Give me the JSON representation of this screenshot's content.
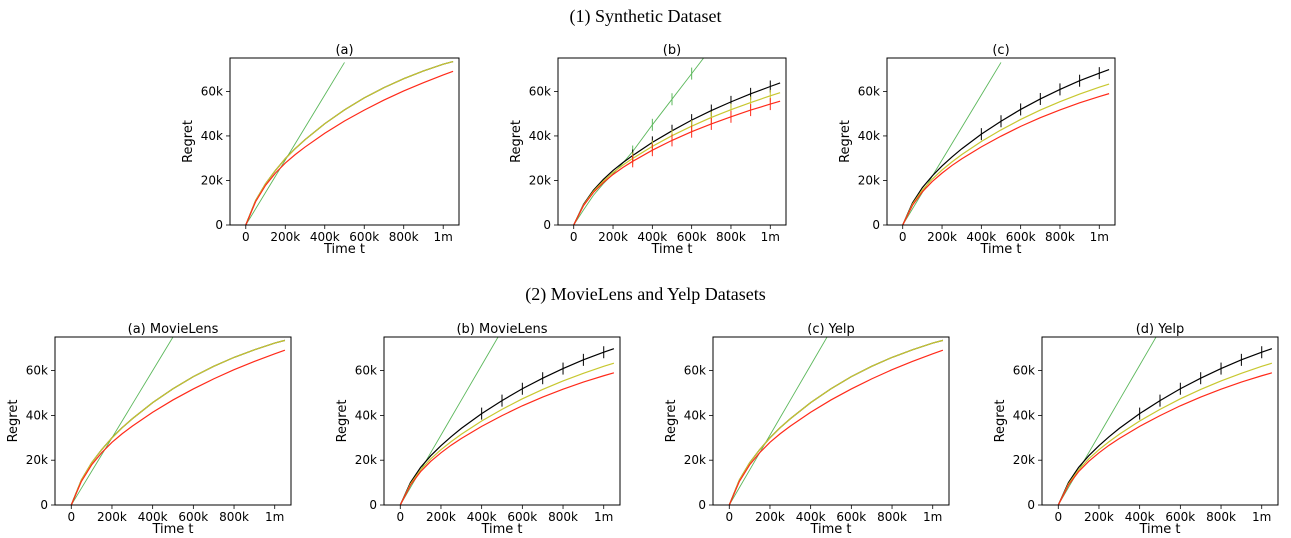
{
  "figure": {
    "row1_title": "(1) Synthetic Dataset",
    "row2_title": "(2) MovieLens and Yelp Datasets"
  },
  "colors": {
    "green": "#5cb85c",
    "black": "#000000",
    "yellow": "#c8c830",
    "red": "#ff2a1a"
  },
  "chart_data": [
    {
      "type": "line",
      "title": "(a)",
      "xlabel": "Time t",
      "ylabel": "Regret",
      "xlim": [
        -80000,
        1080000
      ],
      "ylim": [
        0,
        75000
      ],
      "xticks": [
        0,
        200000,
        400000,
        600000,
        800000,
        1000000
      ],
      "xticklabels": [
        "0",
        "200k",
        "400k",
        "600k",
        "800k",
        "1m"
      ],
      "yticks": [
        0,
        20000,
        40000,
        60000
      ],
      "yticklabels": [
        "0",
        "20k",
        "40k",
        "60k"
      ],
      "x": [
        0,
        50000,
        100000,
        150000,
        200000,
        250000,
        300000,
        400000,
        500000,
        600000,
        700000,
        800000,
        900000,
        1000000,
        1050000
      ],
      "series": [
        {
          "color": "green",
          "values": [
            0,
            7300,
            14600,
            21900,
            29200,
            36500,
            43800,
            58400,
            73000,
            null,
            null,
            null,
            null,
            null,
            null
          ]
        },
        {
          "color": "black",
          "values": [
            0,
            11000,
            18500,
            24500,
            29800,
            34300,
            38300,
            45500,
            51700,
            57100,
            61700,
            65700,
            69200,
            72200,
            73400
          ]
        },
        {
          "color": "yellow",
          "values": [
            0,
            11000,
            18500,
            24500,
            29800,
            34300,
            38300,
            45500,
            51700,
            57100,
            61700,
            65700,
            69200,
            72200,
            73400
          ]
        },
        {
          "color": "red",
          "values": [
            0,
            10500,
            17800,
            23300,
            27800,
            31600,
            35000,
            41200,
            46700,
            51600,
            56100,
            60200,
            63900,
            67400,
            69000
          ]
        }
      ]
    },
    {
      "type": "line",
      "title": "(b)",
      "xlabel": "Time t",
      "ylabel": "Regret",
      "xlim": [
        -80000,
        1080000
      ],
      "ylim": [
        0,
        75000
      ],
      "xticks": [
        0,
        200000,
        400000,
        600000,
        800000,
        1000000
      ],
      "xticklabels": [
        "0",
        "200k",
        "400k",
        "600k",
        "800k",
        "1m"
      ],
      "yticks": [
        0,
        20000,
        40000,
        60000
      ],
      "yticklabels": [
        "0",
        "20k",
        "40k",
        "60k"
      ],
      "x": [
        0,
        50000,
        100000,
        150000,
        200000,
        250000,
        300000,
        400000,
        500000,
        600000,
        700000,
        800000,
        900000,
        1000000,
        1050000
      ],
      "error_bar_x": [
        300000,
        400000,
        500000,
        600000,
        700000,
        800000,
        900000,
        1000000
      ],
      "series": [
        {
          "color": "green",
          "values": [
            0,
            6800,
            13300,
            18500,
            23000,
            27800,
            33000,
            45000,
            56500,
            68000,
            79500,
            null,
            null,
            null,
            null
          ],
          "error_bars": true
        },
        {
          "color": "black",
          "values": [
            0,
            9300,
            15600,
            20400,
            24500,
            28000,
            31200,
            37100,
            42300,
            47100,
            51400,
            55300,
            58900,
            62200,
            63800
          ],
          "error_bars": true
        },
        {
          "color": "yellow",
          "values": [
            0,
            9000,
            15100,
            19700,
            23600,
            26900,
            29900,
            35300,
            40100,
            44400,
            48300,
            51800,
            55000,
            58000,
            59400
          ],
          "error_bars": true
        },
        {
          "color": "red",
          "values": [
            0,
            8700,
            14600,
            19000,
            22700,
            25800,
            28600,
            33600,
            38000,
            41900,
            45400,
            48600,
            51600,
            54300,
            55600
          ],
          "error_bars": true
        }
      ]
    },
    {
      "type": "line",
      "title": "(c)",
      "xlabel": "Time t",
      "ylabel": "Regret",
      "xlim": [
        -80000,
        1080000
      ],
      "ylim": [
        0,
        75000
      ],
      "xticks": [
        0,
        200000,
        400000,
        600000,
        800000,
        1000000
      ],
      "xticklabels": [
        "0",
        "200k",
        "400k",
        "600k",
        "800k",
        "1m"
      ],
      "yticks": [
        0,
        20000,
        40000,
        60000
      ],
      "yticklabels": [
        "0",
        "20k",
        "40k",
        "60k"
      ],
      "x": [
        0,
        50000,
        100000,
        150000,
        200000,
        250000,
        300000,
        400000,
        500000,
        600000,
        700000,
        800000,
        900000,
        1000000,
        1050000
      ],
      "error_bar_x": [
        400000,
        500000,
        600000,
        700000,
        800000,
        900000,
        1000000
      ],
      "series": [
        {
          "color": "green",
          "values": [
            0,
            7300,
            14600,
            21900,
            29200,
            36500,
            43800,
            58400,
            73000,
            null,
            null,
            null,
            null,
            null,
            null
          ]
        },
        {
          "color": "black",
          "values": [
            0,
            10000,
            16800,
            22000,
            26500,
            30500,
            34200,
            40800,
            46600,
            51900,
            56600,
            60900,
            64800,
            68200,
            69800
          ],
          "error_bars": true
        },
        {
          "color": "yellow",
          "values": [
            0,
            9400,
            15700,
            20600,
            24700,
            28300,
            31600,
            37500,
            42700,
            47400,
            51600,
            55400,
            58800,
            61900,
            63300
          ]
        },
        {
          "color": "red",
          "values": [
            0,
            8900,
            14900,
            19500,
            23300,
            26700,
            29700,
            35100,
            39900,
            44300,
            48200,
            51700,
            54900,
            57700,
            59000
          ]
        }
      ]
    },
    {
      "type": "line",
      "title": "(a) MovieLens",
      "xlabel": "Time t",
      "ylabel": "Regret",
      "xlim": [
        -80000,
        1080000
      ],
      "ylim": [
        0,
        75000
      ],
      "xticks": [
        0,
        200000,
        400000,
        600000,
        800000,
        1000000
      ],
      "xticklabels": [
        "0",
        "200k",
        "400k",
        "600k",
        "800k",
        "1m"
      ],
      "yticks": [
        0,
        20000,
        40000,
        60000
      ],
      "yticklabels": [
        "0",
        "20k",
        "40k",
        "60k"
      ],
      "x": [
        0,
        50000,
        100000,
        150000,
        200000,
        250000,
        300000,
        400000,
        500000,
        600000,
        700000,
        800000,
        900000,
        1000000,
        1050000
      ],
      "series": [
        {
          "color": "green",
          "values": [
            0,
            7500,
            15000,
            22500,
            30000,
            37500,
            45000,
            60000,
            75000,
            null,
            null,
            null,
            null,
            null,
            null
          ]
        },
        {
          "color": "black",
          "values": [
            0,
            11200,
            18800,
            24800,
            30000,
            34500,
            38500,
            45700,
            51900,
            57300,
            61900,
            65900,
            69300,
            72300,
            73500
          ]
        },
        {
          "color": "yellow",
          "values": [
            0,
            11200,
            18800,
            24800,
            30000,
            34500,
            38500,
            45700,
            51900,
            57300,
            61900,
            65900,
            69300,
            72300,
            73500
          ]
        },
        {
          "color": "red",
          "values": [
            0,
            10600,
            17900,
            23400,
            28000,
            31800,
            35200,
            41400,
            46900,
            51800,
            56300,
            60400,
            64100,
            67500,
            69100
          ]
        }
      ]
    },
    {
      "type": "line",
      "title": "(b) MovieLens",
      "xlabel": "Time t",
      "ylabel": "Regret",
      "xlim": [
        -80000,
        1080000
      ],
      "ylim": [
        0,
        75000
      ],
      "xticks": [
        0,
        200000,
        400000,
        600000,
        800000,
        1000000
      ],
      "xticklabels": [
        "0",
        "200k",
        "400k",
        "600k",
        "800k",
        "1m"
      ],
      "yticks": [
        0,
        20000,
        40000,
        60000
      ],
      "yticklabels": [
        "0",
        "20k",
        "40k",
        "60k"
      ],
      "x": [
        0,
        50000,
        100000,
        150000,
        200000,
        250000,
        300000,
        400000,
        500000,
        600000,
        700000,
        800000,
        900000,
        1000000,
        1050000
      ],
      "error_bar_x": [
        400000,
        500000,
        600000,
        700000,
        800000,
        900000,
        1000000
      ],
      "series": [
        {
          "color": "green",
          "values": [
            0,
            7800,
            15600,
            23400,
            31200,
            39000,
            46800,
            62400,
            78000,
            null,
            null,
            null,
            null,
            null,
            null
          ]
        },
        {
          "color": "black",
          "values": [
            0,
            10000,
            16800,
            22000,
            26500,
            30500,
            34200,
            40800,
            46600,
            51900,
            56600,
            60900,
            64800,
            68200,
            69800
          ],
          "error_bars": true
        },
        {
          "color": "yellow",
          "values": [
            0,
            9400,
            15700,
            20600,
            24700,
            28300,
            31600,
            37500,
            42700,
            47400,
            51600,
            55400,
            58800,
            61900,
            63300
          ]
        },
        {
          "color": "red",
          "values": [
            0,
            8900,
            14900,
            19500,
            23300,
            26700,
            29700,
            35100,
            39900,
            44300,
            48200,
            51700,
            54900,
            57700,
            59000
          ]
        }
      ]
    },
    {
      "type": "line",
      "title": "(c) Yelp",
      "xlabel": "Time t",
      "ylabel": "Regret",
      "xlim": [
        -80000,
        1080000
      ],
      "ylim": [
        0,
        75000
      ],
      "xticks": [
        0,
        200000,
        400000,
        600000,
        800000,
        1000000
      ],
      "xticklabels": [
        "0",
        "200k",
        "400k",
        "600k",
        "800k",
        "1m"
      ],
      "yticks": [
        0,
        20000,
        40000,
        60000
      ],
      "yticklabels": [
        "0",
        "20k",
        "40k",
        "60k"
      ],
      "x": [
        0,
        50000,
        100000,
        150000,
        200000,
        250000,
        300000,
        400000,
        500000,
        600000,
        700000,
        800000,
        900000,
        1000000,
        1050000
      ],
      "series": [
        {
          "color": "green",
          "values": [
            0,
            7800,
            15600,
            23400,
            31200,
            39000,
            46800,
            62400,
            78000,
            null,
            null,
            null,
            null,
            null,
            null
          ]
        },
        {
          "color": "black",
          "values": [
            0,
            11200,
            18800,
            24800,
            30000,
            34500,
            38500,
            45700,
            51900,
            57300,
            61900,
            65900,
            69300,
            72300,
            73500
          ]
        },
        {
          "color": "yellow",
          "values": [
            0,
            11200,
            18800,
            24800,
            30000,
            34500,
            38500,
            45700,
            51900,
            57300,
            61900,
            65900,
            69300,
            72300,
            73500
          ]
        },
        {
          "color": "red",
          "values": [
            0,
            10600,
            17900,
            23400,
            28000,
            31800,
            35200,
            41400,
            46900,
            51800,
            56300,
            60400,
            64100,
            67500,
            69100
          ]
        }
      ]
    },
    {
      "type": "line",
      "title": "(d) Yelp",
      "xlabel": "Time t",
      "ylabel": "Regret",
      "xlim": [
        -80000,
        1080000
      ],
      "ylim": [
        0,
        75000
      ],
      "xticks": [
        0,
        200000,
        400000,
        600000,
        800000,
        1000000
      ],
      "xticklabels": [
        "0",
        "200k",
        "400k",
        "600k",
        "800k",
        "1m"
      ],
      "yticks": [
        0,
        20000,
        40000,
        60000
      ],
      "yticklabels": [
        "0",
        "20k",
        "40k",
        "60k"
      ],
      "x": [
        0,
        50000,
        100000,
        150000,
        200000,
        250000,
        300000,
        400000,
        500000,
        600000,
        700000,
        800000,
        900000,
        1000000,
        1050000
      ],
      "error_bar_x": [
        400000,
        500000,
        600000,
        700000,
        800000,
        900000,
        1000000
      ],
      "series": [
        {
          "color": "green",
          "values": [
            0,
            7800,
            15600,
            23400,
            31200,
            39000,
            46800,
            62400,
            78000,
            null,
            null,
            null,
            null,
            null,
            null
          ]
        },
        {
          "color": "black",
          "values": [
            0,
            10000,
            16800,
            22000,
            26500,
            30500,
            34200,
            40800,
            46600,
            51900,
            56600,
            60900,
            64800,
            68200,
            69800
          ],
          "error_bars": true
        },
        {
          "color": "yellow",
          "values": [
            0,
            9400,
            15700,
            20600,
            24700,
            28300,
            31600,
            37500,
            42700,
            47400,
            51600,
            55400,
            58800,
            61900,
            63300
          ]
        },
        {
          "color": "red",
          "values": [
            0,
            8900,
            14900,
            19500,
            23300,
            26700,
            29700,
            35100,
            39900,
            44300,
            48200,
            51700,
            54900,
            57700,
            59000
          ]
        }
      ]
    }
  ]
}
